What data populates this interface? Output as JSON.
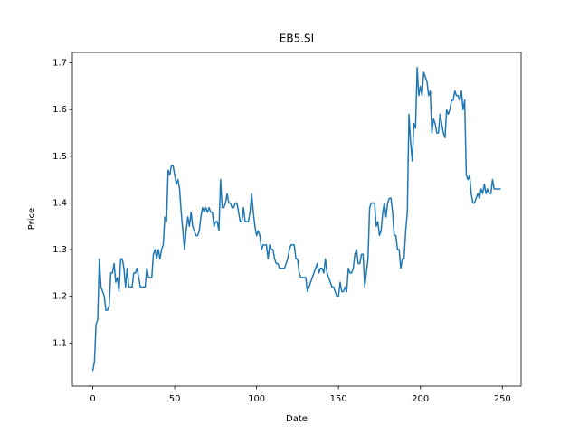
{
  "chart_data": {
    "type": "line",
    "title": "EB5.SI",
    "xlabel": "Date",
    "ylabel": "Price",
    "x": [
      0,
      1,
      2,
      3,
      4,
      5,
      6,
      7,
      8,
      9,
      10,
      11,
      12,
      13,
      14,
      15,
      16,
      17,
      18,
      19,
      20,
      21,
      22,
      23,
      24,
      25,
      26,
      27,
      28,
      29,
      30,
      31,
      32,
      33,
      34,
      35,
      36,
      37,
      38,
      39,
      40,
      41,
      42,
      43,
      44,
      45,
      46,
      47,
      48,
      49,
      50,
      51,
      52,
      53,
      54,
      55,
      56,
      57,
      58,
      59,
      60,
      61,
      62,
      63,
      64,
      65,
      66,
      67,
      68,
      69,
      70,
      71,
      72,
      73,
      74,
      75,
      76,
      77,
      78,
      79,
      80,
      81,
      82,
      83,
      84,
      85,
      86,
      87,
      88,
      89,
      90,
      91,
      92,
      93,
      94,
      95,
      96,
      97,
      98,
      99,
      100,
      101,
      102,
      103,
      104,
      105,
      106,
      107,
      108,
      109,
      110,
      111,
      112,
      113,
      114,
      115,
      116,
      117,
      118,
      119,
      120,
      121,
      122,
      123,
      124,
      125,
      126,
      127,
      128,
      129,
      130,
      131,
      132,
      133,
      134,
      135,
      136,
      137,
      138,
      139,
      140,
      141,
      142,
      143,
      144,
      145,
      146,
      147,
      148,
      149,
      150,
      151,
      152,
      153,
      154,
      155,
      156,
      157,
      158,
      159,
      160,
      161,
      162,
      163,
      164,
      165,
      166,
      167,
      168,
      169,
      170,
      171,
      172,
      173,
      174,
      175,
      176,
      177,
      178,
      179,
      180,
      181,
      182,
      183,
      184,
      185,
      186,
      187,
      188,
      189,
      190,
      191,
      192,
      193,
      194,
      195,
      196,
      197,
      198,
      199,
      200,
      201,
      202,
      203,
      204,
      205,
      206,
      207,
      208,
      209,
      210,
      211,
      212,
      213,
      214,
      215,
      216,
      217,
      218,
      219,
      220,
      221,
      222,
      223,
      224,
      225,
      226,
      227,
      228,
      229,
      230,
      231,
      232,
      233,
      234,
      235,
      236,
      237,
      238,
      239,
      240,
      241,
      242,
      243,
      244,
      245,
      246,
      247,
      248,
      249
    ],
    "series": [
      {
        "name": "Price",
        "color": "#1f77b4",
        "values": [
          1.04,
          1.06,
          1.14,
          1.15,
          1.28,
          1.22,
          1.21,
          1.2,
          1.17,
          1.17,
          1.18,
          1.25,
          1.25,
          1.27,
          1.23,
          1.24,
          1.21,
          1.28,
          1.28,
          1.26,
          1.22,
          1.26,
          1.22,
          1.22,
          1.22,
          1.25,
          1.25,
          1.26,
          1.24,
          1.22,
          1.22,
          1.22,
          1.22,
          1.26,
          1.24,
          1.24,
          1.24,
          1.29,
          1.3,
          1.28,
          1.3,
          1.28,
          1.3,
          1.31,
          1.37,
          1.36,
          1.47,
          1.46,
          1.48,
          1.48,
          1.46,
          1.44,
          1.45,
          1.43,
          1.38,
          1.34,
          1.3,
          1.34,
          1.37,
          1.35,
          1.38,
          1.35,
          1.34,
          1.33,
          1.33,
          1.34,
          1.37,
          1.39,
          1.38,
          1.39,
          1.38,
          1.39,
          1.38,
          1.38,
          1.35,
          1.36,
          1.36,
          1.34,
          1.45,
          1.39,
          1.39,
          1.4,
          1.42,
          1.4,
          1.4,
          1.39,
          1.39,
          1.4,
          1.4,
          1.38,
          1.36,
          1.36,
          1.39,
          1.36,
          1.36,
          1.36,
          1.38,
          1.42,
          1.38,
          1.35,
          1.33,
          1.34,
          1.33,
          1.3,
          1.31,
          1.31,
          1.31,
          1.28,
          1.31,
          1.3,
          1.3,
          1.28,
          1.27,
          1.27,
          1.26,
          1.26,
          1.26,
          1.26,
          1.27,
          1.28,
          1.3,
          1.31,
          1.31,
          1.31,
          1.28,
          1.28,
          1.25,
          1.24,
          1.24,
          1.24,
          1.24,
          1.21,
          1.22,
          1.23,
          1.24,
          1.25,
          1.26,
          1.27,
          1.25,
          1.26,
          1.26,
          1.25,
          1.28,
          1.25,
          1.24,
          1.23,
          1.22,
          1.22,
          1.21,
          1.2,
          1.2,
          1.23,
          1.21,
          1.21,
          1.22,
          1.21,
          1.26,
          1.25,
          1.25,
          1.26,
          1.29,
          1.3,
          1.27,
          1.27,
          1.29,
          1.29,
          1.22,
          1.25,
          1.28,
          1.39,
          1.4,
          1.4,
          1.4,
          1.35,
          1.36,
          1.33,
          1.34,
          1.38,
          1.4,
          1.37,
          1.4,
          1.41,
          1.41,
          1.38,
          1.33,
          1.33,
          1.3,
          1.3,
          1.26,
          1.28,
          1.28,
          1.34,
          1.38,
          1.59,
          1.53,
          1.49,
          1.57,
          1.56,
          1.69,
          1.63,
          1.65,
          1.63,
          1.68,
          1.67,
          1.66,
          1.63,
          1.64,
          1.55,
          1.58,
          1.57,
          1.55,
          1.55,
          1.59,
          1.57,
          1.55,
          1.54,
          1.6,
          1.59,
          1.6,
          1.62,
          1.62,
          1.64,
          1.63,
          1.63,
          1.62,
          1.64,
          1.6,
          1.62,
          1.46,
          1.45,
          1.46,
          1.42,
          1.4,
          1.4,
          1.41,
          1.42,
          1.41,
          1.43,
          1.42,
          1.44,
          1.42,
          1.43,
          1.42,
          1.42,
          1.45,
          1.43,
          1.43,
          1.43,
          1.43,
          1.43
        ]
      }
    ],
    "xlim": [
      -12.45,
      261.45
    ],
    "xticks": [
      0,
      50,
      100,
      150,
      200,
      250
    ],
    "ylim": [
      1.0075,
      1.7225
    ],
    "yticks": [
      1.1,
      1.2,
      1.3,
      1.4,
      1.5,
      1.6,
      1.7
    ]
  }
}
